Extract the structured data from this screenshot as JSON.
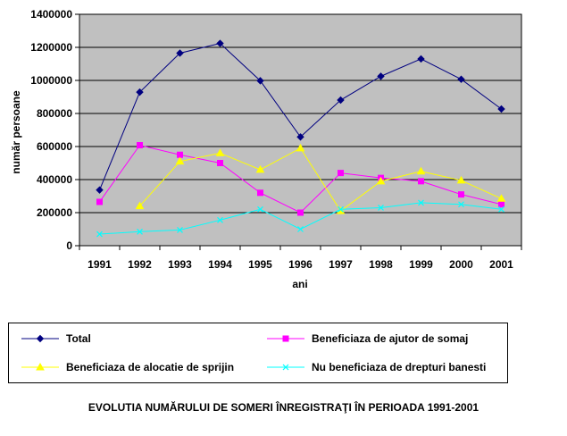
{
  "chart_data": {
    "type": "line",
    "title": "EVOLUTIA NUMĂRULUI DE SOMERI ÎNREGISTRAŢI ÎN PERIOADA 1991-2001",
    "xlabel": "ani",
    "ylabel": "număr persoane",
    "categories": [
      "1991",
      "1992",
      "1993",
      "1994",
      "1995",
      "1996",
      "1997",
      "1998",
      "1999",
      "2000",
      "2001"
    ],
    "ylim": [
      0,
      1400000
    ],
    "yticks": [
      "0",
      "200000",
      "400000",
      "600000",
      "800000",
      "1000000",
      "1200000",
      "1400000"
    ],
    "grid": true,
    "plot_background": "#c0c0c0",
    "legend_position": "bottom",
    "series": [
      {
        "name": "Total",
        "color": "#000080",
        "marker": "diamond",
        "values": [
          337000,
          929000,
          1165000,
          1224000,
          998000,
          658000,
          881000,
          1025000,
          1130000,
          1007000,
          827000
        ]
      },
      {
        "name": "Beneficiaza de ajutor de somaj",
        "color": "#ff00ff",
        "marker": "square",
        "values": [
          265000,
          608000,
          550000,
          500000,
          320000,
          200000,
          440000,
          410000,
          390000,
          310000,
          250000
        ]
      },
      {
        "name": "Beneficiaza de alocatie de sprijin",
        "color": "#ffff00",
        "marker": "triangle",
        "values": [
          null,
          240000,
          510000,
          560000,
          460000,
          590000,
          210000,
          390000,
          450000,
          395000,
          285000
        ]
      },
      {
        "name": "Nu beneficiaza de drepturi banesti",
        "color": "#00ffff",
        "marker": "x",
        "values": [
          70000,
          85000,
          95000,
          155000,
          220000,
          100000,
          220000,
          230000,
          260000,
          250000,
          220000
        ]
      }
    ]
  }
}
